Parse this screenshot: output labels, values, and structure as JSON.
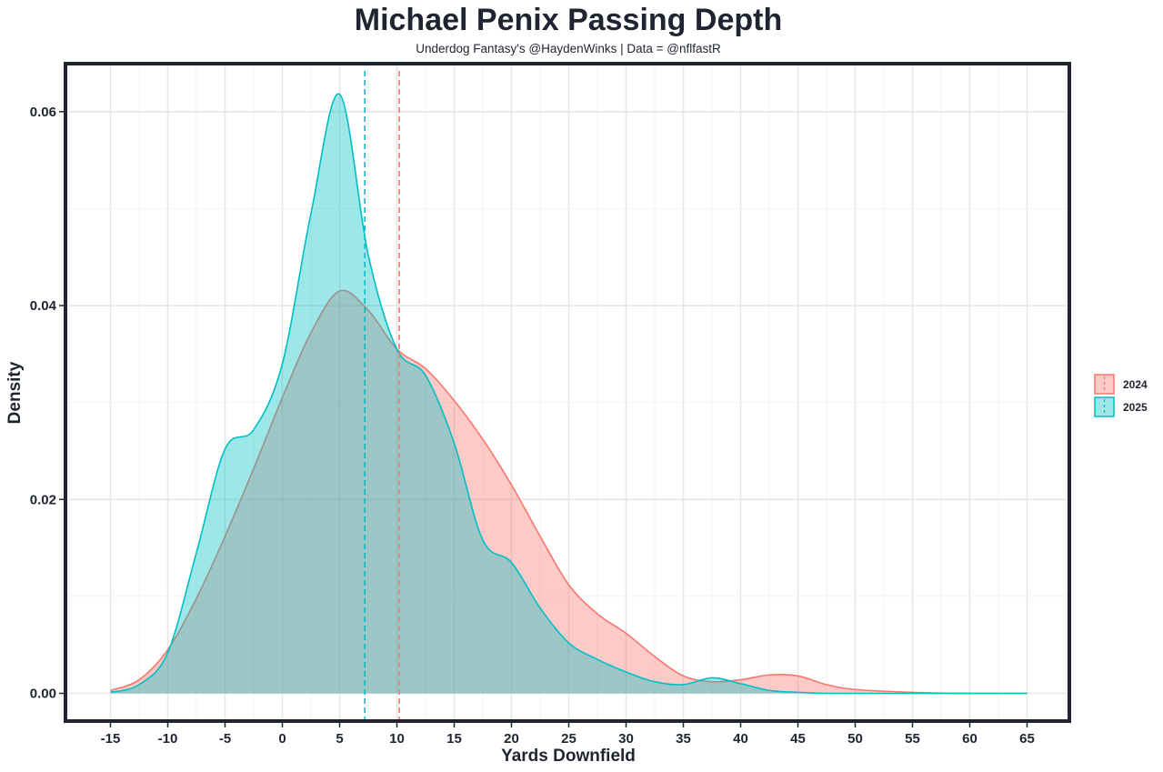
{
  "chart_data": {
    "type": "area",
    "title": "Michael Penix Passing Depth",
    "subtitle": "Underdog Fantasy's @HaydenWinks | Data = @nflfastR",
    "xlabel": "Yards Downfield",
    "ylabel": "Density",
    "xlim": [
      -15,
      65
    ],
    "ylim": [
      0,
      0.065
    ],
    "x_ticks": [
      -15,
      -10,
      -5,
      0,
      5,
      10,
      15,
      20,
      25,
      30,
      35,
      40,
      45,
      50,
      55,
      60,
      65
    ],
    "x_tick_labels": [
      "-15",
      "-10",
      "-5",
      "0",
      "5",
      "10",
      "15",
      "20",
      "25",
      "30",
      "35",
      "40",
      "45",
      "50",
      "55",
      "60",
      "65"
    ],
    "y_ticks": [
      0,
      0.02,
      0.04,
      0.06
    ],
    "y_tick_labels": [
      "0.00",
      "0.02",
      "0.04",
      "0.06"
    ],
    "grid": true,
    "legend_position": "right",
    "x": [
      -15,
      -12.5,
      -10,
      -7.5,
      -5,
      -2.5,
      0,
      2.5,
      5,
      7.5,
      10,
      12.5,
      15,
      17.5,
      20,
      22.5,
      25,
      27.5,
      30,
      32.5,
      35,
      37.5,
      40,
      42.5,
      45,
      47.5,
      50,
      55,
      60,
      65
    ],
    "series": [
      {
        "name": "2024",
        "color": "#f8766d",
        "fill": "#f8766d",
        "mean": 10.2,
        "values": [
          0.0003,
          0.0014,
          0.0045,
          0.0098,
          0.0162,
          0.0232,
          0.0305,
          0.0372,
          0.0415,
          0.0395,
          0.0355,
          0.0335,
          0.0302,
          0.0262,
          0.0215,
          0.0162,
          0.0112,
          0.0082,
          0.0062,
          0.0038,
          0.0018,
          0.0012,
          0.0014,
          0.0019,
          0.0018,
          0.0009,
          0.0004,
          0.0001,
          0.0,
          0.0
        ]
      },
      {
        "name": "2025",
        "color": "#00bfc4",
        "fill": "#00bfc4",
        "mean": 7.2,
        "values": [
          0.0001,
          0.0009,
          0.0042,
          0.0145,
          0.0252,
          0.0272,
          0.034,
          0.0495,
          0.0618,
          0.0452,
          0.0355,
          0.0328,
          0.0258,
          0.0158,
          0.0135,
          0.0088,
          0.0052,
          0.0035,
          0.0022,
          0.0012,
          0.0009,
          0.0016,
          0.001,
          0.0003,
          0.0001,
          0.0,
          0.0,
          0.0,
          0.0,
          0.0
        ]
      }
    ]
  }
}
